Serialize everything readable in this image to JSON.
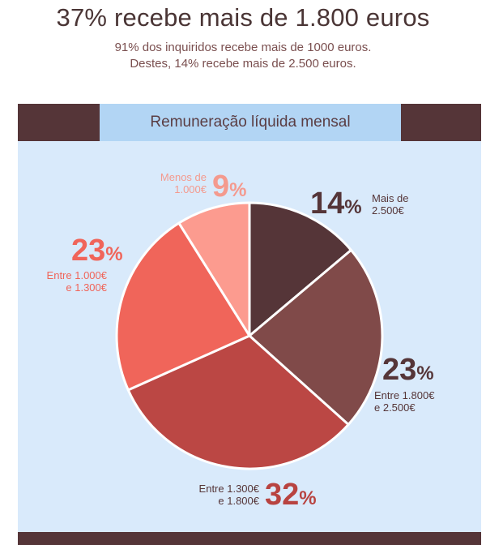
{
  "header": {
    "title": "37% recebe mais de 1.800 euros",
    "subtitle_line1": "91% dos inquiridos recebe mais de 1000 euros.",
    "subtitle_line2": "Destes, 14% recebe mais de 2.500 euros."
  },
  "chart_data": {
    "type": "pie",
    "title": "Remuneração líquida mensal",
    "slices": [
      {
        "value": 14,
        "value_text": "14",
        "unit": "%",
        "label_line1": "Mais de",
        "label_line2": "2.500€",
        "color": "#553538"
      },
      {
        "value": 23,
        "value_text": "23",
        "unit": "%",
        "label_line1": "Entre 1.800€",
        "label_line2": "e 2.500€",
        "color": "#804a49"
      },
      {
        "value": 32,
        "value_text": "32",
        "unit": "%",
        "label_line1": "Entre 1.300€",
        "label_line2": "e 1.800€",
        "color": "#bb4744"
      },
      {
        "value": 23,
        "value_text": "23",
        "unit": "%",
        "label_line1": "Entre 1.000€",
        "label_line2": "e 1.300€",
        "color": "#f0655a"
      },
      {
        "value": 9,
        "value_text": "9",
        "unit": "%",
        "label_line1": "Menos de",
        "label_line2": "1.000€",
        "color": "#fc9b8f"
      }
    ],
    "start_angle_deg": 0,
    "direction": "clockwise",
    "label_color_dark": "#553538",
    "label_color_red": "#b84340",
    "label_color_salmon": "#f0655a",
    "label_color_pink": "#f49a8e",
    "background": "#d9eafb",
    "band_color": "#553538",
    "title_band_color": "#b2d5f4"
  }
}
